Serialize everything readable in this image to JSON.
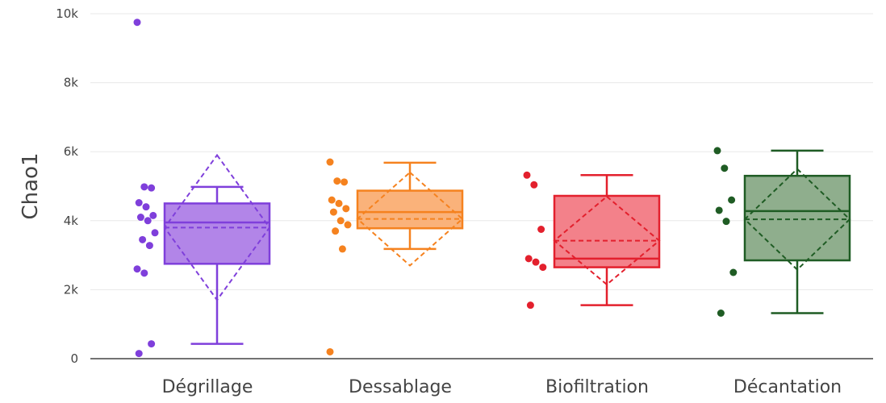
{
  "chart_data": {
    "type": "box",
    "title": "",
    "xlabel": "",
    "ylabel": "Chao1",
    "ylim": [
      0,
      10000
    ],
    "y_ticks": [
      0,
      2000,
      4000,
      6000,
      8000,
      10000
    ],
    "y_tick_labels": [
      "0",
      "2k",
      "4k",
      "6k",
      "8k",
      "10k"
    ],
    "grid": true,
    "legend": "none",
    "categories": [
      "Dégrillage",
      "Dessablage",
      "Biofiltration",
      "Décantation"
    ],
    "series": [
      {
        "category": "Dégrillage",
        "color": "#7f3fdb",
        "fill": "#b285e8",
        "points": [
          9750,
          4980,
          4950,
          4520,
          4400,
          4150,
          4100,
          4000,
          3650,
          3450,
          3280,
          2600,
          2480,
          430,
          150
        ],
        "q1": 2750,
        "median": 3950,
        "q3": 4500,
        "whisker_low": 430,
        "whisker_high": 4980,
        "mean": 3800,
        "mean_minus_sd": 1700,
        "mean_plus_sd": 5900
      },
      {
        "category": "Dessablage",
        "color": "#f5821f",
        "fill": "#fab27a",
        "points": [
          5700,
          5150,
          5120,
          4600,
          4500,
          4350,
          4250,
          4000,
          3880,
          3700,
          3180,
          200
        ],
        "q1": 3780,
        "median": 4250,
        "q3": 4870,
        "whisker_low": 3180,
        "whisker_high": 5680,
        "mean": 4050,
        "mean_minus_sd": 2700,
        "mean_plus_sd": 5400
      },
      {
        "category": "Biofiltration",
        "color": "#e3202d",
        "fill": "#f3818a",
        "points": [
          5320,
          5040,
          3750,
          2900,
          2800,
          2650,
          1550
        ],
        "q1": 2650,
        "median": 2900,
        "q3": 4720,
        "whisker_low": 1550,
        "whisker_high": 5320,
        "mean": 3420,
        "mean_minus_sd": 2150,
        "mean_plus_sd": 4700
      },
      {
        "category": "Décantation",
        "color": "#1f5c24",
        "fill": "#8fae8d",
        "points": [
          6030,
          5520,
          4600,
          4300,
          3980,
          2500,
          1320
        ],
        "q1": 2850,
        "median": 4280,
        "q3": 5300,
        "whisker_low": 1320,
        "whisker_high": 6030,
        "mean": 4040,
        "mean_minus_sd": 2580,
        "mean_plus_sd": 5500
      }
    ]
  }
}
